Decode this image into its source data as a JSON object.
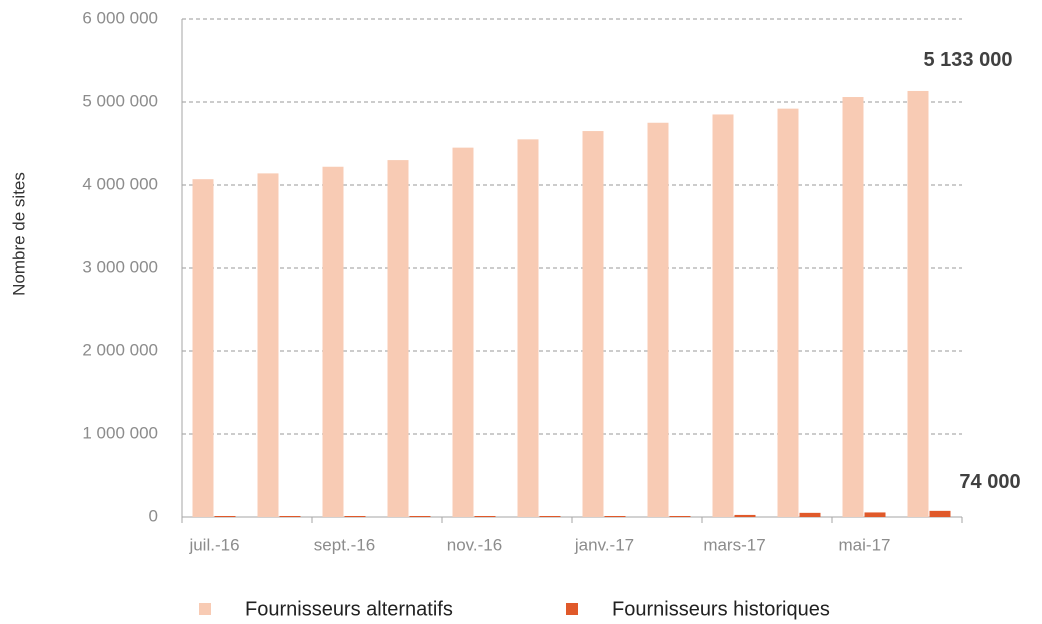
{
  "chart_data": {
    "type": "bar",
    "y_label": "Nombre de sites",
    "categories": [
      "juil.-16",
      null,
      "sept.-16",
      null,
      "nov.-16",
      null,
      "janv.-17",
      null,
      "mars-17",
      null,
      "mai-17",
      null
    ],
    "series": [
      {
        "name": "Fournisseurs alternatifs",
        "color": "#f8cbb4",
        "values": [
          4070000,
          4140000,
          4220000,
          4300000,
          4450000,
          4550000,
          4650000,
          4750000,
          4850000,
          4920000,
          5060000,
          5133000
        ],
        "value_labels": [
          null,
          null,
          null,
          null,
          null,
          null,
          null,
          null,
          null,
          null,
          null,
          "5 133 000"
        ]
      },
      {
        "name": "Fournisseurs historiques",
        "color": "#e0592a",
        "values": [
          12000,
          12000,
          12000,
          12000,
          12000,
          12000,
          12000,
          12000,
          25000,
          50000,
          55000,
          74000
        ],
        "value_labels": [
          null,
          null,
          null,
          null,
          null,
          null,
          null,
          null,
          null,
          null,
          null,
          "74 000"
        ]
      }
    ],
    "ylim": [
      0,
      6000000
    ],
    "yticks": [
      0,
      {
        "value": 1000000,
        "label": "1 000 000"
      },
      {
        "value": 2000000,
        "label": "2 000 000"
      },
      {
        "value": 3000000,
        "label": "3 000 000"
      },
      {
        "value": 4000000,
        "label": "4 000 000"
      },
      {
        "value": 5000000,
        "label": "5 000 000"
      },
      {
        "value": 6000000,
        "label": "6 000 000"
      }
    ],
    "grid": true
  }
}
